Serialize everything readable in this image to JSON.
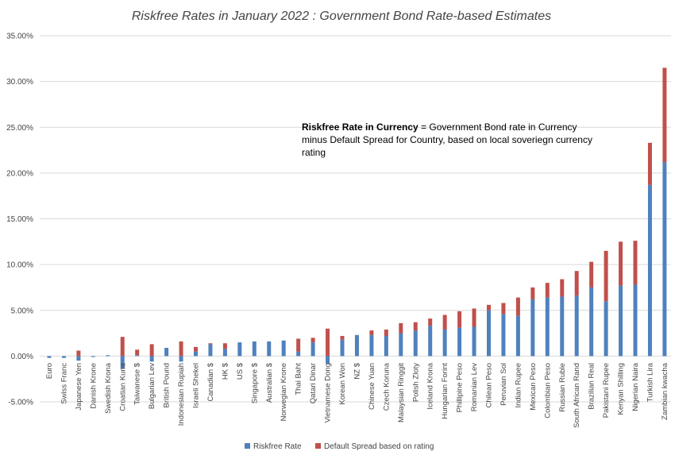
{
  "chart_data": {
    "type": "bar",
    "stacked": true,
    "title": "Riskfree Rates in January 2022 : Government Bond Rate-based Estimates",
    "ylim": [
      -5,
      35
    ],
    "yticks": [
      -5,
      0,
      5,
      10,
      15,
      20,
      25,
      30,
      35
    ],
    "ytick_labels": [
      "-5.00%",
      "0.00%",
      "5.00%",
      "10.00%",
      "15.00%",
      "20.00%",
      "25.00%",
      "30.00%",
      "35.00%"
    ],
    "grid": true,
    "legend_position": "bottom",
    "categories": [
      "Euro",
      "Swiss Franc",
      "Japanese Yen",
      "Danish Krone",
      "Swedish Krona",
      "Croatian Kuna",
      "Taiwanese $",
      "Bulgarian Lev",
      "British Pound",
      "Indonesian Rupiah",
      "Israeli Shekel",
      "Canadian $",
      "HK $",
      "US $",
      "Singapore $",
      "Australian $",
      "Norwegian Krone",
      "Thai Baht",
      "Qatari Dinar",
      "Vietnamese Dong",
      "Korean Won",
      "NZ $",
      "Chinese Yuan",
      "Czech Koruna",
      "Malaysian Ringgit",
      "Polish Zloty",
      "Iceland Krona",
      "Hungarian Forint",
      "Phillipine Peso",
      "Romanian Lev",
      "Chilean Peso",
      "Peruvian Sol",
      "Indian Rupee",
      "Mexican Peso",
      "Colombian Peso",
      "Russian Ruble",
      "South African Rand",
      "Brazilian Real",
      "Pakistani Rupee",
      "Kenyan Shilling",
      "Nigerian Naira",
      "Turkish Lira",
      "Zambian kwacha"
    ],
    "series": [
      {
        "name": "Riskfree Rate",
        "color": "#4f81bd",
        "values": [
          -0.2,
          -0.2,
          -0.5,
          -0.1,
          0.1,
          -1.4,
          0.1,
          -0.6,
          0.9,
          -0.6,
          0.5,
          1.3,
          0.8,
          1.5,
          1.6,
          1.6,
          1.7,
          0.5,
          1.5,
          -0.8,
          1.8,
          2.3,
          2.3,
          2.2,
          2.5,
          2.8,
          3.3,
          2.9,
          3.1,
          3.2,
          5.0,
          4.6,
          4.4,
          6.2,
          6.4,
          6.5,
          6.6,
          7.5,
          6.0,
          7.7,
          7.8,
          18.7,
          21.2
        ]
      },
      {
        "name": "Default Spread based on rating",
        "color": "#c0504d",
        "values": [
          0,
          0,
          0.6,
          0,
          0,
          2.1,
          0.6,
          1.3,
          0,
          1.6,
          0.5,
          0.1,
          0.6,
          0,
          0,
          0,
          0,
          1.4,
          0.5,
          3.0,
          0.4,
          0,
          0.5,
          0.7,
          1.1,
          0.9,
          0.8,
          1.6,
          1.8,
          2.0,
          0.6,
          1.2,
          2.0,
          1.3,
          1.6,
          1.9,
          2.7,
          2.8,
          5.5,
          4.8,
          4.8,
          4.6,
          10.3
        ]
      }
    ]
  },
  "annotation": {
    "bold": "Riskfree Rate in Currency",
    "text": " = Government Bond rate in Currency minus Default Spread for Country, based on local soveriegn currency rating"
  }
}
